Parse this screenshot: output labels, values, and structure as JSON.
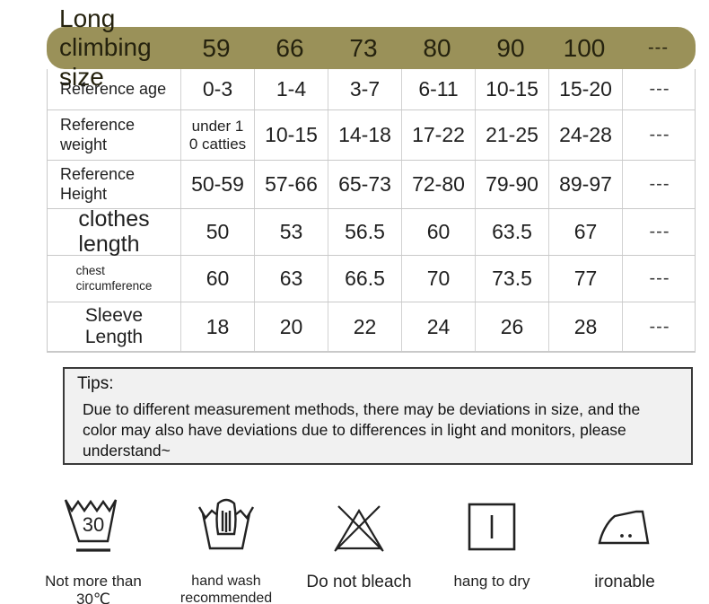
{
  "table": {
    "header": {
      "label": "Long climbing\nsize",
      "sizes": [
        "59",
        "66",
        "73",
        "80",
        "90",
        "100",
        "---"
      ]
    },
    "rows": [
      {
        "label": "Reference age",
        "values": [
          "0-3",
          "1-4",
          "3-7",
          "6-11",
          "10-15",
          "15-20",
          "---"
        ]
      },
      {
        "label": "Reference\nweight",
        "values": [
          "under 1\n0 catties",
          "10-15",
          "14-18",
          "17-22",
          "21-25",
          "24-28",
          "---"
        ]
      },
      {
        "label": "Reference\nHeight",
        "values": [
          "50-59",
          "57-66",
          "65-73",
          "72-80",
          "79-90",
          "89-97",
          "---"
        ]
      },
      {
        "label": "clothes\nlength",
        "values": [
          "50",
          "53",
          "56.5",
          "60",
          "63.5",
          "67",
          "---"
        ]
      },
      {
        "label": "chest\ncircumference",
        "values": [
          "60",
          "63",
          "66.5",
          "70",
          "73.5",
          "77",
          "---"
        ]
      },
      {
        "label": "Sleeve\nLength",
        "values": [
          "18",
          "20",
          "22",
          "24",
          "26",
          "28",
          "---"
        ]
      }
    ]
  },
  "tips": {
    "title": "Tips:",
    "body": "Due to different measurement methods, there may be deviations in size, and the color may also have deviations due to differences in light and monitors, please understand~"
  },
  "care": {
    "items": [
      {
        "icon": "wash-30-icon",
        "label": "Not more than 30℃",
        "number": "30"
      },
      {
        "icon": "hand-wash-icon",
        "label": "hand wash recommended"
      },
      {
        "icon": "do-not-bleach-icon",
        "label": "Do not bleach"
      },
      {
        "icon": "hang-to-dry-icon",
        "label": "hang to dry"
      },
      {
        "icon": "ironable-icon",
        "label": "ironable"
      }
    ]
  },
  "colors": {
    "header_bg": "#9a9159",
    "header_text": "#25220e",
    "table_border": "#c9c9c9",
    "tips_border": "#3a3a3a",
    "tips_bg": "#f1f1f1",
    "text": "#1f1f1f"
  }
}
